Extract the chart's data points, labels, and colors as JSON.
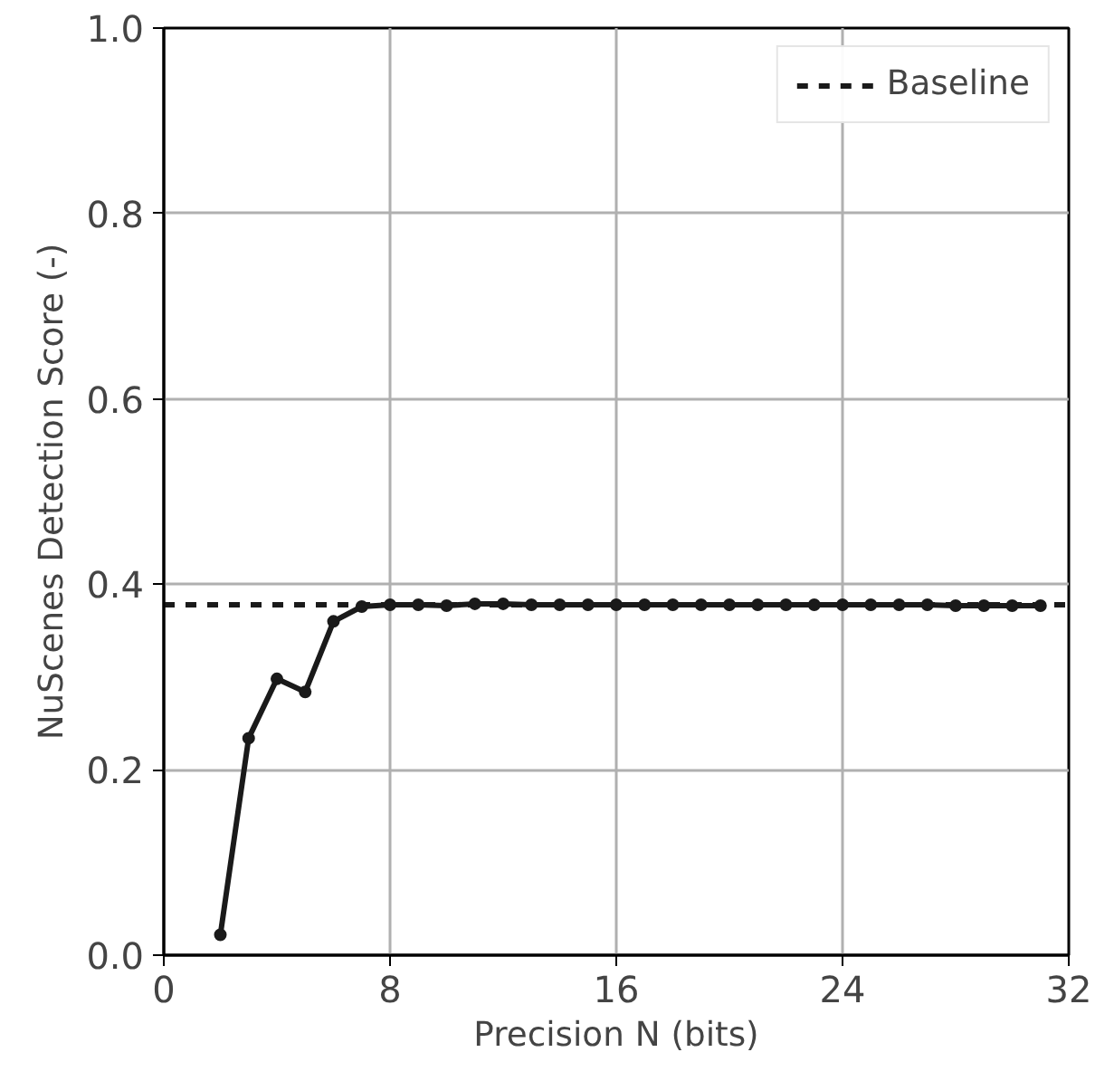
{
  "chart_data": {
    "type": "line",
    "xlabel": "Precision N (bits)",
    "ylabel": "NuScenes Detection Score (-)",
    "x": [
      2,
      3,
      4,
      5,
      6,
      7,
      8,
      9,
      10,
      11,
      12,
      13,
      14,
      15,
      16,
      17,
      18,
      19,
      20,
      21,
      22,
      23,
      24,
      25,
      26,
      27,
      28,
      29,
      30,
      31
    ],
    "series": [
      {
        "color": "#1a1a1a",
        "values": [
          0.022,
          0.234,
          0.298,
          0.284,
          0.36,
          0.376,
          0.378,
          0.378,
          0.377,
          0.379,
          0.379,
          0.378,
          0.378,
          0.378,
          0.378,
          0.378,
          0.378,
          0.378,
          0.378,
          0.378,
          0.378,
          0.378,
          0.378,
          0.378,
          0.378,
          0.378,
          0.377,
          0.377,
          0.377,
          0.377
        ]
      }
    ],
    "ref_lines": [
      {
        "axis": "y",
        "value": 0.378,
        "label": "Baseline",
        "color": "#1a1a1a",
        "line_style": "dashed"
      }
    ],
    "xlim": [
      0,
      32
    ],
    "xticks": [
      0,
      8,
      16,
      24,
      32
    ],
    "ylim": [
      0,
      1.0
    ],
    "yticks": [
      {
        "value": 0,
        "label": "0.0"
      },
      0.2,
      0.4,
      0.6,
      0.8,
      {
        "value": 1,
        "label": "1.0"
      }
    ],
    "grid": true,
    "legend": "top right",
    "marker": "circle",
    "line_style": "solid"
  }
}
